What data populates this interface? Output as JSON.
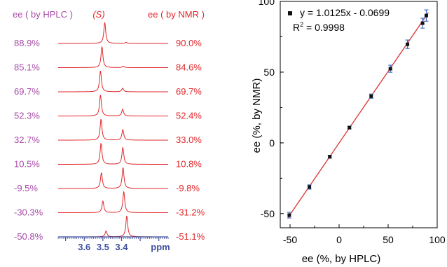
{
  "colors": {
    "hplc_label": "#a84aa8",
    "nmr_label": "#e0272b",
    "spectrum": "#e0272b",
    "ppm_axis": "#3f4f9e",
    "fit_line": "#d83030",
    "marker": "#111111",
    "errorbar": "#3f6fc8"
  },
  "chart_data": [
    {
      "type": "line",
      "title": "",
      "header_left": "ee ( by HPLC )",
      "header_center": "(S)",
      "header_right": "ee ( by NMR )",
      "xlabel": "ppm",
      "xlim": [
        3.74,
        3.15
      ],
      "x_reversed": true,
      "xticks": [
        3.6,
        3.5,
        3.4
      ],
      "xtick_labels": [
        "3.6",
        "3.5",
        "3.4"
      ],
      "peak_s_ppm": 3.5,
      "peak_r_ppm": 3.4,
      "series": [
        {
          "hplc": "88.9%",
          "nmr": "90.0%",
          "peak_s_ppm": 3.49,
          "peak_r_ppm": 3.375,
          "s_height": 1.0,
          "r_height": 0.05
        },
        {
          "hplc": "85.1%",
          "nmr": "84.6%",
          "peak_s_ppm": 3.505,
          "peak_r_ppm": 3.39,
          "s_height": 1.0,
          "r_height": 0.07
        },
        {
          "hplc": "69.7%",
          "nmr": "69.7%",
          "peak_s_ppm": 3.513,
          "peak_r_ppm": 3.394,
          "s_height": 1.0,
          "r_height": 0.17
        },
        {
          "hplc": "52.3%",
          "nmr": "52.4%",
          "peak_s_ppm": 3.513,
          "peak_r_ppm": 3.394,
          "s_height": 1.0,
          "r_height": 0.32
        },
        {
          "hplc": "32.7%",
          "nmr": "33.0%",
          "peak_s_ppm": 3.51,
          "peak_r_ppm": 3.393,
          "s_height": 1.0,
          "r_height": 0.5
        },
        {
          "hplc": "10.5%",
          "nmr": "10.8%",
          "peak_s_ppm": 3.51,
          "peak_r_ppm": 3.393,
          "s_height": 1.0,
          "r_height": 0.8
        },
        {
          "hplc": "-9.5%",
          "nmr": "-9.8%",
          "peak_s_ppm": 3.508,
          "peak_r_ppm": 3.392,
          "s_height": 0.75,
          "r_height": 1.0
        },
        {
          "hplc": "-30.3%",
          "nmr": "-31.2%",
          "peak_s_ppm": 3.5,
          "peak_r_ppm": 3.388,
          "s_height": 0.55,
          "r_height": 1.0
        },
        {
          "hplc": "-50.8%",
          "nmr": "-51.1%",
          "peak_s_ppm": 3.483,
          "peak_r_ppm": 3.372,
          "s_height": 0.28,
          "r_height": 1.0
        }
      ]
    },
    {
      "type": "scatter",
      "title": "",
      "xlabel": "ee (%, by HPLC)",
      "ylabel": "ee (%, by NMR)",
      "xlim": [
        -60,
        100
      ],
      "ylim": [
        -60,
        100
      ],
      "xticks": [
        -50,
        0,
        50,
        100
      ],
      "yticks": [
        -50,
        0,
        50,
        100
      ],
      "xtick_labels": [
        "-50",
        "0",
        "50",
        "100"
      ],
      "ytick_labels": [
        "-50",
        "0",
        "50",
        "100"
      ],
      "legend_label": "y = 1.0125x - 0.0699",
      "r2_label_base": "R",
      "r2_label_sup": "2",
      "r2_label_rest": " = 0.9998",
      "legend_position": "top-left",
      "fit": {
        "slope": 1.0125,
        "intercept": -0.0699
      },
      "points": [
        {
          "x": -50.8,
          "y": -51.1,
          "err": 2.0
        },
        {
          "x": -30.3,
          "y": -31.2,
          "err": 1.5
        },
        {
          "x": -9.5,
          "y": -9.8,
          "err": 1.0
        },
        {
          "x": 10.5,
          "y": 10.8,
          "err": 1.0
        },
        {
          "x": 32.7,
          "y": 33.0,
          "err": 1.5
        },
        {
          "x": 52.3,
          "y": 52.4,
          "err": 2.5
        },
        {
          "x": 69.7,
          "y": 69.7,
          "err": 3.0
        },
        {
          "x": 85.1,
          "y": 84.6,
          "err": 3.5
        },
        {
          "x": 88.9,
          "y": 90.0,
          "err": 4.0
        }
      ]
    }
  ]
}
